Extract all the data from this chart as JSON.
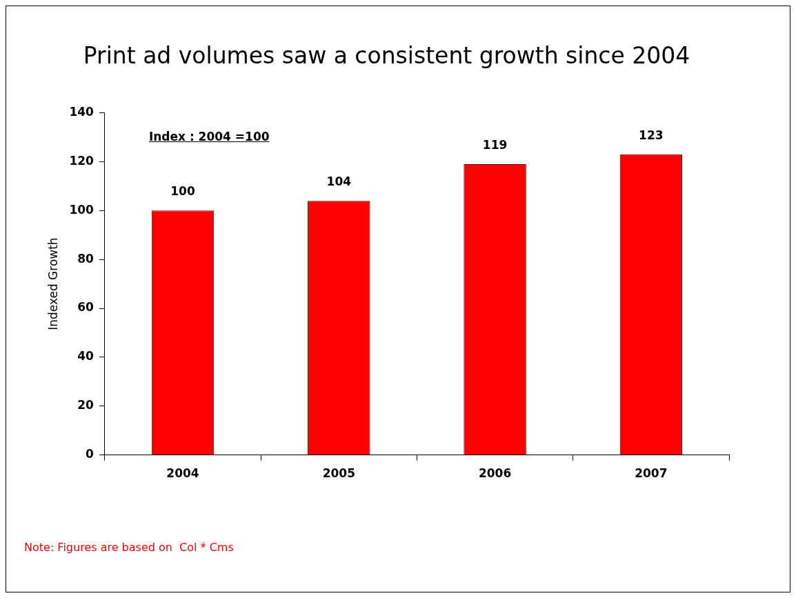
{
  "chart_data": {
    "type": "bar",
    "title": "Print ad volumes saw a consistent growth since 2004",
    "ylabel": "Indexed Growth",
    "categories": [
      "2004",
      "2005",
      "2006",
      "2007"
    ],
    "values": [
      100,
      104,
      119,
      123
    ],
    "color": "#ff0000",
    "ylim": [
      0,
      140
    ],
    "yticks": [
      0,
      20,
      40,
      60,
      80,
      100,
      120,
      140
    ],
    "grid": false,
    "legend": false,
    "data_labels": true,
    "annotations": [
      "Index : 2004 =100",
      "Note: Figures are based on  Col * Cms"
    ]
  }
}
